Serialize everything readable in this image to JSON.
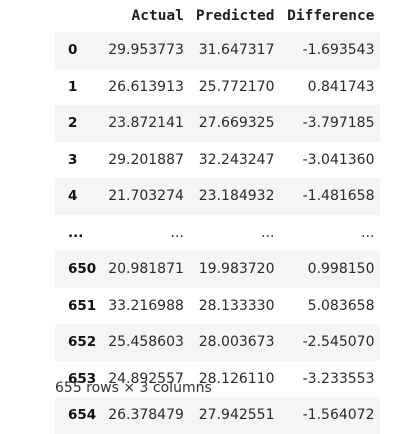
{
  "dataframe": {
    "columns": [
      "Actual",
      "Predicted",
      "Difference"
    ],
    "rows": [
      {
        "index": "0",
        "actual": "29.953773",
        "predicted": "31.647317",
        "difference": "-1.693543"
      },
      {
        "index": "1",
        "actual": "26.613913",
        "predicted": "25.772170",
        "difference": "0.841743"
      },
      {
        "index": "2",
        "actual": "23.872141",
        "predicted": "27.669325",
        "difference": "-3.797185"
      },
      {
        "index": "3",
        "actual": "29.201887",
        "predicted": "32.243247",
        "difference": "-3.041360"
      },
      {
        "index": "4",
        "actual": "21.703274",
        "predicted": "23.184932",
        "difference": "-1.481658"
      },
      {
        "index": "...",
        "actual": "...",
        "predicted": "...",
        "difference": "..."
      },
      {
        "index": "650",
        "actual": "20.981871",
        "predicted": "19.983720",
        "difference": "0.998150"
      },
      {
        "index": "651",
        "actual": "33.216988",
        "predicted": "28.133330",
        "difference": "5.083658"
      },
      {
        "index": "652",
        "actual": "25.458603",
        "predicted": "28.003673",
        "difference": "-2.545070"
      },
      {
        "index": "653",
        "actual": "24.892557",
        "predicted": "28.126110",
        "difference": "-3.233553"
      },
      {
        "index": "654",
        "actual": "26.378479",
        "predicted": "27.942551",
        "difference": "-1.564072"
      }
    ],
    "shape_caption": "655 rows × 3 columns"
  }
}
